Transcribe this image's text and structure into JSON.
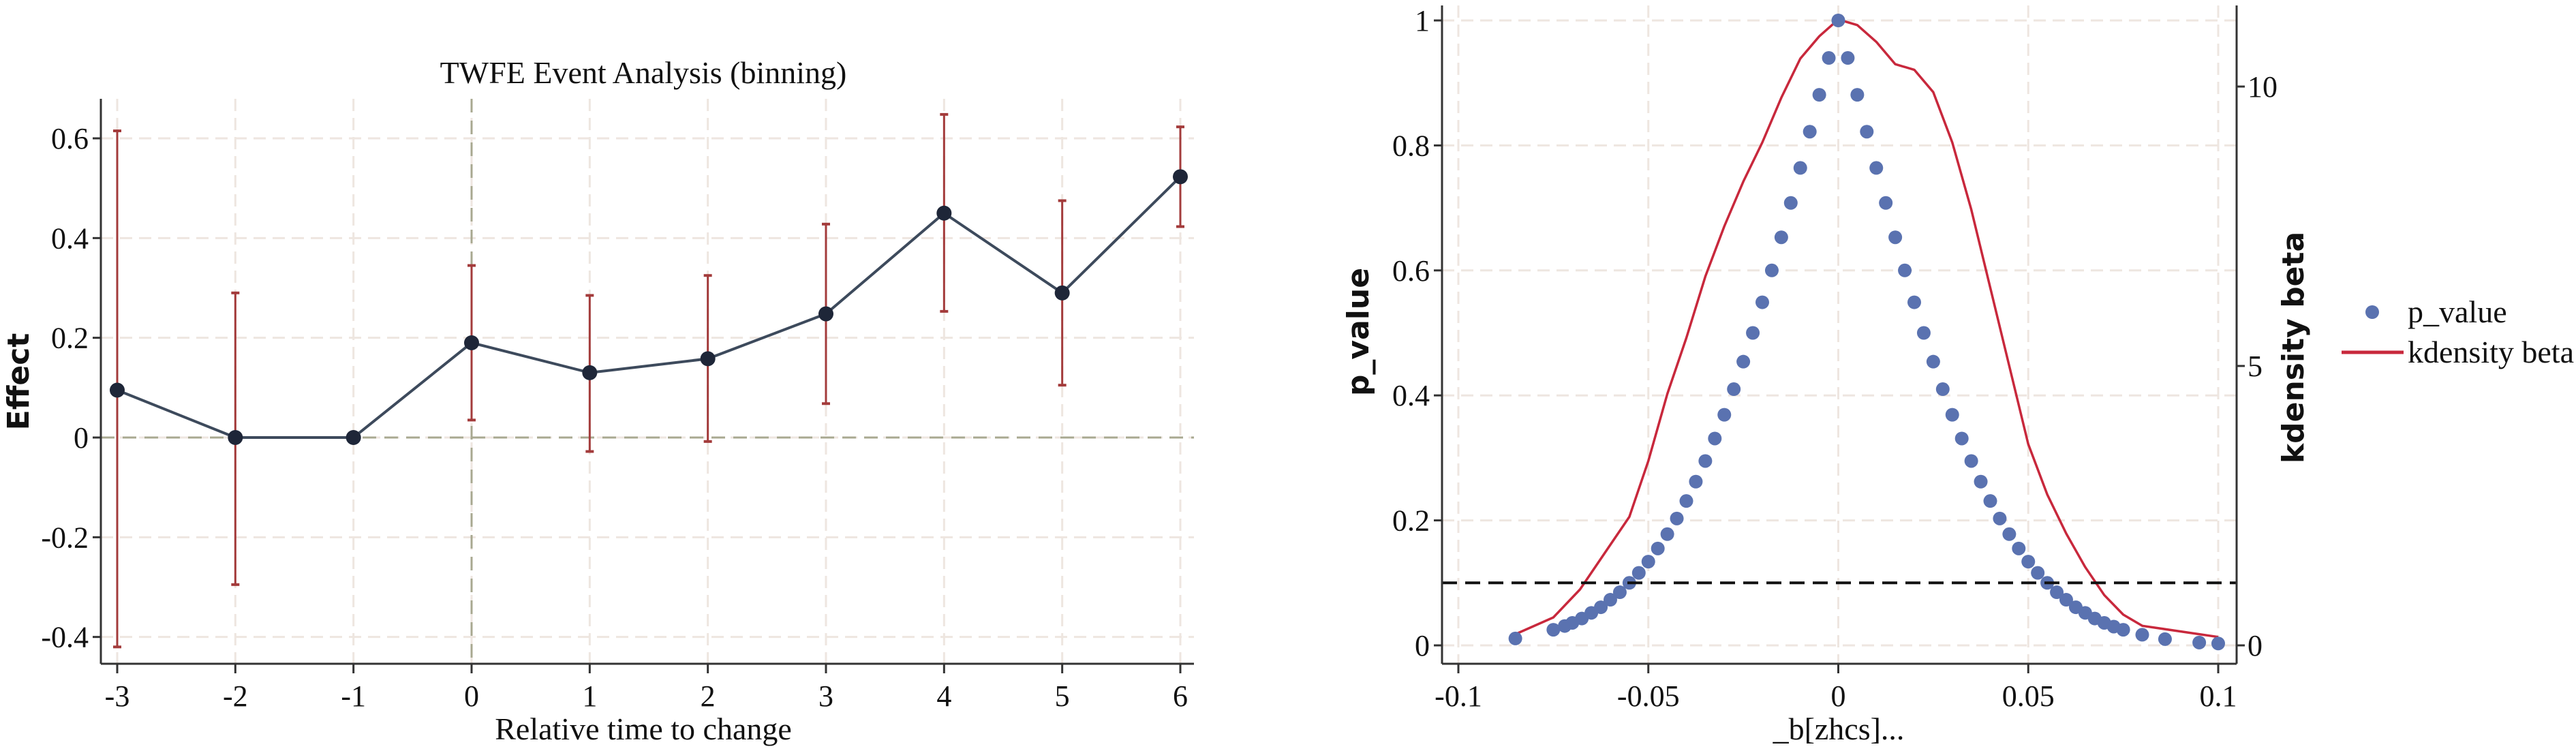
{
  "chart_data": [
    {
      "type": "line",
      "title": "TWFE Event Analysis (binning)",
      "xlabel": "Relative time to change",
      "ylabel": "Effect",
      "xlim": [
        -3,
        6
      ],
      "ylim": [
        -0.42,
        0.68
      ],
      "xticks": [
        "-3",
        "-2",
        "-1",
        "0",
        "1",
        "2",
        "3",
        "4",
        "5",
        "6"
      ],
      "yticks": [
        "-0.4",
        "-0.2",
        "0",
        "0.2",
        "0.4",
        "0.6"
      ],
      "x": [
        -3,
        -2,
        -1,
        0,
        1,
        2,
        3,
        4,
        5,
        6
      ],
      "estimate": [
        0.095,
        0.0,
        0.0,
        0.19,
        0.13,
        0.158,
        0.248,
        0.45,
        0.29,
        0.523
      ],
      "ci_low": [
        -0.42,
        -0.295,
        null,
        0.035,
        -0.028,
        -0.008,
        0.068,
        0.253,
        0.105,
        0.423
      ],
      "ci_high": [
        0.615,
        0.29,
        null,
        0.345,
        0.285,
        0.325,
        0.428,
        0.648,
        0.475,
        0.623
      ],
      "reference_lines": {
        "x": 0,
        "y": 0
      },
      "colors": {
        "line": "#3d4a5c",
        "ci": "#a33b3b",
        "ref": "#a8a890"
      }
    },
    {
      "type": "scatter",
      "xlabel": "_b[zhcs]...",
      "ylabel": "p_value",
      "ylabel_right": "kdensity beta",
      "xlim": [
        -0.105,
        0.105
      ],
      "ylim": [
        -0.03,
        1.02
      ],
      "ylim_right": [
        0,
        11.2
      ],
      "xticks": [
        "-0.1",
        "-0.05",
        "0",
        "0.05",
        "0.1"
      ],
      "yticks": [
        "0",
        "0.2",
        "0.4",
        "0.6",
        "0.8",
        "1"
      ],
      "yticks_right": [
        "0",
        "5",
        "10"
      ],
      "threshold": 0.1,
      "legend": {
        "position": "right",
        "items": [
          "p_value",
          "kdensity beta"
        ]
      },
      "colors": {
        "points": "#5a72b0",
        "density": "#c8283c",
        "threshold": "#111111"
      },
      "p_value": {
        "b": [
          -0.085,
          -0.075,
          -0.072,
          -0.07,
          -0.0675,
          -0.065,
          -0.0625,
          -0.06,
          -0.0575,
          -0.055,
          -0.0525,
          -0.05,
          -0.0475,
          -0.045,
          -0.0425,
          -0.04,
          -0.0375,
          -0.035,
          -0.0325,
          -0.03,
          -0.0275,
          -0.025,
          -0.0225,
          -0.02,
          -0.0175,
          -0.015,
          -0.0125,
          -0.01,
          -0.0075,
          -0.005,
          -0.0025,
          0,
          0.0025,
          0.005,
          0.0075,
          0.01,
          0.0125,
          0.015,
          0.0175,
          0.02,
          0.0225,
          0.025,
          0.0275,
          0.03,
          0.0325,
          0.035,
          0.0375,
          0.04,
          0.0425,
          0.045,
          0.0475,
          0.05,
          0.0525,
          0.055,
          0.0575,
          0.06,
          0.0625,
          0.065,
          0.0675,
          0.07,
          0.0725,
          0.075,
          0.08,
          0.086,
          0.095,
          0.1
        ],
        "p": [
          0.011,
          0.025,
          0.031,
          0.036,
          0.043,
          0.052,
          0.061,
          0.073,
          0.085,
          0.1,
          0.116,
          0.134,
          0.155,
          0.178,
          0.203,
          0.231,
          0.262,
          0.295,
          0.331,
          0.369,
          0.41,
          0.454,
          0.5,
          0.549,
          0.6,
          0.653,
          0.708,
          0.764,
          0.822,
          0.881,
          0.94,
          1.0,
          0.94,
          0.881,
          0.822,
          0.764,
          0.708,
          0.653,
          0.6,
          0.549,
          0.5,
          0.454,
          0.41,
          0.369,
          0.331,
          0.295,
          0.262,
          0.231,
          0.203,
          0.178,
          0.155,
          0.134,
          0.116,
          0.1,
          0.085,
          0.073,
          0.061,
          0.052,
          0.043,
          0.036,
          0.03,
          0.025,
          0.017,
          0.01,
          0.0045,
          0.003
        ]
      },
      "kdensity": {
        "b": [
          -0.085,
          -0.075,
          -0.068,
          -0.06,
          -0.055,
          -0.05,
          -0.045,
          -0.04,
          -0.035,
          -0.03,
          -0.025,
          -0.02,
          -0.015,
          -0.01,
          -0.005,
          0,
          0.005,
          0.01,
          0.015,
          0.02,
          0.025,
          0.03,
          0.035,
          0.04,
          0.045,
          0.05,
          0.055,
          0.06,
          0.065,
          0.07,
          0.075,
          0.08,
          0.09,
          0.1
        ],
        "density": [
          0.2,
          0.5,
          1.0,
          1.8,
          2.3,
          3.3,
          4.5,
          5.5,
          6.6,
          7.5,
          8.3,
          9.0,
          9.8,
          10.5,
          10.9,
          11.2,
          11.1,
          10.8,
          10.4,
          10.3,
          9.9,
          9.0,
          7.8,
          6.4,
          5.0,
          3.6,
          2.7,
          2.0,
          1.4,
          0.9,
          0.55,
          0.35,
          0.25,
          0.15
        ]
      }
    }
  ]
}
